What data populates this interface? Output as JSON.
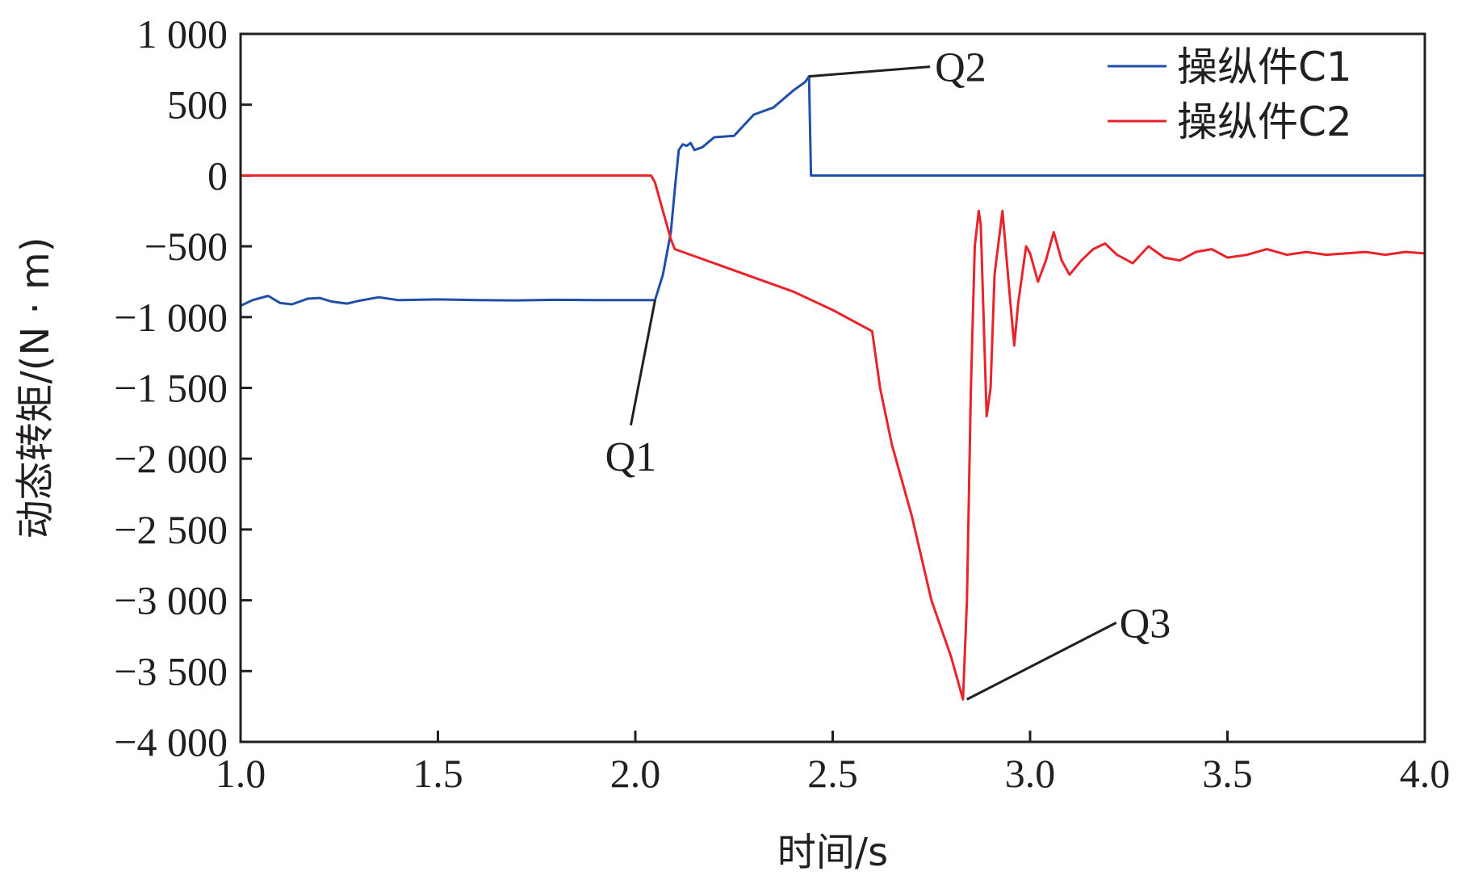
{
  "chart_data": {
    "type": "line",
    "title": "",
    "xlabel": "时间/s",
    "ylabel": "动态转矩/(N · m)",
    "xlim": [
      1.0,
      4.0
    ],
    "ylim": [
      -4000,
      1000
    ],
    "xticks": [
      1.0,
      1.5,
      2.0,
      2.5,
      3.0,
      3.5,
      4.0
    ],
    "xtick_labels": [
      "1.0",
      "1.5",
      "2.0",
      "2.5",
      "3.0",
      "3.5",
      "4.0"
    ],
    "yticks": [
      1000,
      500,
      0,
      -500,
      -1000,
      -1500,
      -2000,
      -2500,
      -3000,
      -3500,
      -4000
    ],
    "ytick_labels": [
      "1 000",
      "500",
      "0",
      "−500",
      "−1 000",
      "−1 500",
      "−2 000",
      "−2 500",
      "−3 000",
      "−3 500",
      "−4 000"
    ],
    "grid": false,
    "legend_position": "top-right",
    "series": [
      {
        "name": "操纵件C1",
        "color": "#1f4fa8",
        "x": [
          1.0,
          1.03,
          1.07,
          1.1,
          1.13,
          1.17,
          1.2,
          1.23,
          1.27,
          1.3,
          1.35,
          1.4,
          1.5,
          1.6,
          1.7,
          1.8,
          1.9,
          2.0,
          2.05,
          2.07,
          2.09,
          2.1,
          2.11,
          2.12,
          2.13,
          2.14,
          2.15,
          2.17,
          2.2,
          2.25,
          2.3,
          2.35,
          2.4,
          2.43,
          2.44,
          2.445,
          2.46,
          2.6,
          3.0,
          3.5,
          4.0
        ],
        "y": [
          -920,
          -880,
          -850,
          -900,
          -910,
          -870,
          -865,
          -890,
          -905,
          -885,
          -860,
          -880,
          -875,
          -880,
          -882,
          -878,
          -880,
          -880,
          -880,
          -700,
          -400,
          -100,
          180,
          220,
          210,
          230,
          180,
          200,
          270,
          280,
          430,
          480,
          600,
          660,
          700,
          0,
          0,
          0,
          0,
          0,
          0
        ]
      },
      {
        "name": "操纵件C2",
        "color": "#e8232a",
        "x": [
          1.0,
          1.5,
          2.0,
          2.04,
          2.05,
          2.07,
          2.09,
          2.1,
          2.2,
          2.3,
          2.4,
          2.5,
          2.6,
          2.62,
          2.65,
          2.7,
          2.75,
          2.8,
          2.83,
          2.84,
          2.85,
          2.86,
          2.87,
          2.875,
          2.89,
          2.9,
          2.91,
          2.93,
          2.95,
          2.96,
          2.97,
          2.99,
          3.0,
          3.02,
          3.04,
          3.06,
          3.08,
          3.1,
          3.13,
          3.16,
          3.19,
          3.22,
          3.26,
          3.3,
          3.34,
          3.38,
          3.42,
          3.46,
          3.5,
          3.55,
          3.6,
          3.65,
          3.7,
          3.75,
          3.8,
          3.85,
          3.9,
          3.95,
          4.0
        ],
        "y": [
          0,
          0,
          0,
          0,
          -50,
          -250,
          -450,
          -520,
          -620,
          -720,
          -820,
          -950,
          -1100,
          -1500,
          -1900,
          -2400,
          -3000,
          -3400,
          -3700,
          -3000,
          -1500,
          -500,
          -250,
          -350,
          -1700,
          -1500,
          -700,
          -250,
          -900,
          -1200,
          -900,
          -500,
          -550,
          -750,
          -600,
          -400,
          -600,
          -700,
          -600,
          -520,
          -480,
          -560,
          -620,
          -500,
          -580,
          -600,
          -540,
          -520,
          -580,
          -560,
          -520,
          -560,
          -540,
          -560,
          -550,
          -540,
          -560,
          -540,
          -550
        ]
      }
    ],
    "annotations": [
      {
        "label": "Q1",
        "x": 2.05,
        "y": -880
      },
      {
        "label": "Q2",
        "x": 2.44,
        "y": 700
      },
      {
        "label": "Q3",
        "x": 2.84,
        "y": -3700
      }
    ]
  }
}
